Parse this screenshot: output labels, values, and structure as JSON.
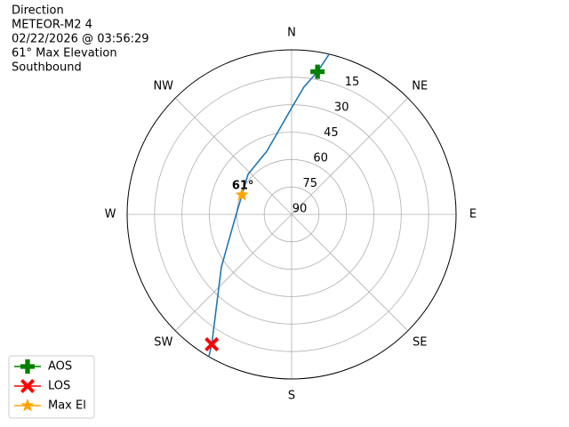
{
  "chart_data": {
    "type": "polar",
    "title_lines": [
      "Direction",
      "METEOR-M2 4",
      "02/22/2026 @ 03:56:29",
      "61° Max Elevation",
      "Southbound"
    ],
    "rlim": [
      90,
      0
    ],
    "rticks": [
      15,
      30,
      45,
      60,
      75,
      90
    ],
    "thetaticks": [
      {
        "value": 0,
        "label": "N"
      },
      {
        "value": 45,
        "label": "NE"
      },
      {
        "value": 90,
        "label": "E"
      },
      {
        "value": 135,
        "label": "SE"
      },
      {
        "value": 180,
        "label": "S"
      },
      {
        "value": 225,
        "label": "SW"
      },
      {
        "value": 270,
        "label": "W"
      },
      {
        "value": 315,
        "label": "NW"
      }
    ],
    "grid": true,
    "legend": "lower left",
    "track": {
      "color": "#1f77b4",
      "az": [
        13.2,
        10.3,
        5.5,
        0.9,
        338.5,
        312.6,
        291.4,
        262.1,
        233.2,
        220.3,
        211.6,
        210.2
      ],
      "el": [
        0,
        10.7,
        20,
        30.2,
        52.9,
        57.6,
        60.8,
        58.1,
        42,
        26.8,
        6.6,
        0
      ]
    },
    "series": [
      {
        "name": "AOS",
        "color": "green",
        "marker": "plus",
        "az": [
          10.3
        ],
        "el": [
          10.7
        ]
      },
      {
        "name": "LOS",
        "color": "red",
        "marker": "x",
        "az": [
          211.6
        ],
        "el": [
          6.6
        ]
      },
      {
        "name": "Max El",
        "color": "orange",
        "marker": "star",
        "az": [
          291.4
        ],
        "el": [
          60.8
        ]
      }
    ],
    "annotation": "61°"
  }
}
